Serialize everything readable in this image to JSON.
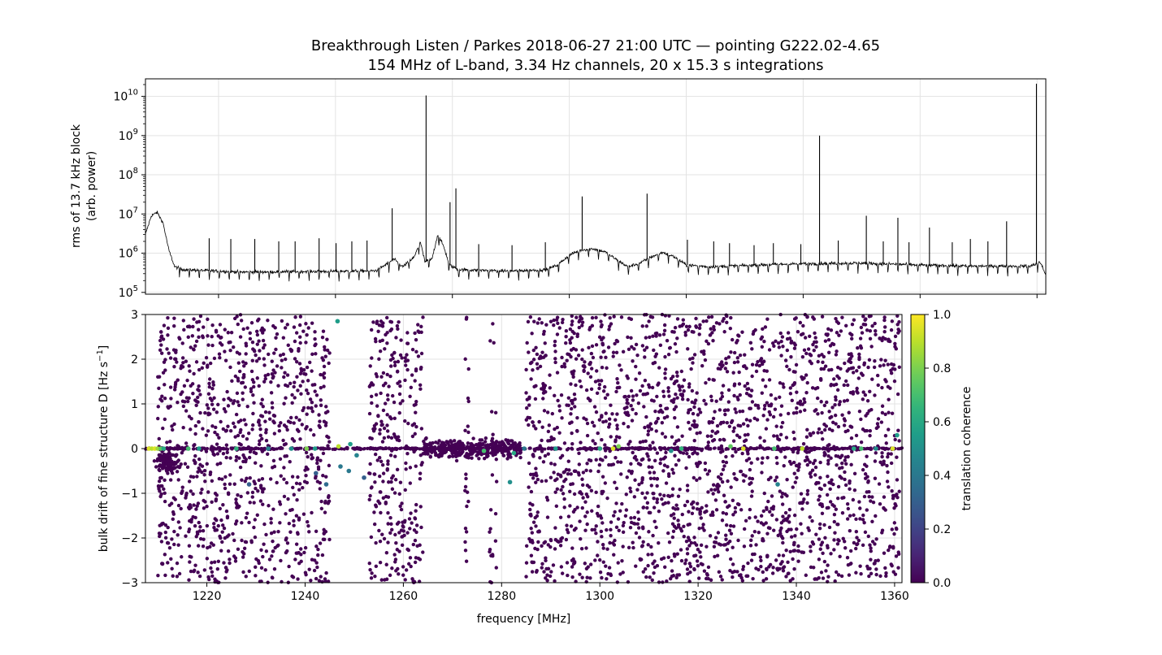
{
  "figure": {
    "title_line1": "Breakthrough Listen / Parkes 2018-06-27 21:00 UTC  —  pointing G222.02-4.65",
    "title_line2": "154 MHz of L-band, 3.34 Hz channels, 20 x 15.3 s integrations"
  },
  "chart_data": [
    {
      "type": "line",
      "panel": "top",
      "ylabel_line1": "rms of 13.7 kHz block",
      "ylabel_line2": "(arb. power)",
      "yscale": "log",
      "ylim": [
        90000,
        28000000000
      ],
      "xlim": [
        1207.5,
        1361.5
      ],
      "y_tick_labels": [
        {
          "base": "10",
          "exp": "5",
          "value": 100000
        },
        {
          "base": "10",
          "exp": "6",
          "value": 1000000
        },
        {
          "base": "10",
          "exp": "7",
          "value": 10000000
        },
        {
          "base": "10",
          "exp": "8",
          "value": 100000000
        },
        {
          "base": "10",
          "exp": "9",
          "value": 1000000000
        },
        {
          "base": "10",
          "exp": "10",
          "value": 10000000000
        }
      ],
      "grid": true,
      "line_color": "#000000",
      "baseline_profile": [
        [
          1207.5,
          3000000
        ],
        [
          1208.5,
          9000000
        ],
        [
          1209.5,
          11000000
        ],
        [
          1210.5,
          6000000
        ],
        [
          1211.5,
          1200000
        ],
        [
          1212.5,
          450000
        ],
        [
          1214,
          380000
        ],
        [
          1218,
          360000
        ],
        [
          1224,
          330000
        ],
        [
          1234,
          340000
        ],
        [
          1244,
          350000
        ],
        [
          1247,
          360000
        ],
        [
          1248.5,
          500000
        ],
        [
          1250,
          700000
        ],
        [
          1251.5,
          450000
        ],
        [
          1253.5,
          800000
        ],
        [
          1254.5,
          2000000
        ],
        [
          1255.3,
          600000
        ],
        [
          1256.5,
          700000
        ],
        [
          1257.5,
          3000000
        ],
        [
          1258.5,
          1500000
        ],
        [
          1259.5,
          500000
        ],
        [
          1261,
          380000
        ],
        [
          1270,
          350000
        ],
        [
          1276,
          380000
        ],
        [
          1278,
          500000
        ],
        [
          1280,
          900000
        ],
        [
          1282,
          1200000
        ],
        [
          1284,
          1300000
        ],
        [
          1286,
          1100000
        ],
        [
          1288,
          700000
        ],
        [
          1290,
          450000
        ],
        [
          1292,
          550000
        ],
        [
          1294,
          800000
        ],
        [
          1296,
          1050000
        ],
        [
          1298,
          800000
        ],
        [
          1300,
          500000
        ],
        [
          1304,
          450000
        ],
        [
          1312,
          500000
        ],
        [
          1320,
          540000
        ],
        [
          1330,
          560000
        ],
        [
          1340,
          500000
        ],
        [
          1348,
          470000
        ],
        [
          1352,
          470000
        ],
        [
          1356,
          470000
        ],
        [
          1359,
          470000
        ],
        [
          1360.5,
          600000
        ],
        [
          1361.5,
          280000
        ]
      ],
      "coarse_channel_dips": {
        "start": 1213.3,
        "spacing": 1.707,
        "factor": 0.55
      },
      "spikes": [
        {
          "x": 1255.5,
          "y": 10500000000
        },
        {
          "x": 1260.6,
          "y": 45000000
        },
        {
          "x": 1259.6,
          "y": 20000000
        },
        {
          "x": 1322.8,
          "y": 1000000000
        },
        {
          "x": 1359.9,
          "y": 21000000000
        },
        {
          "x": 1282.2,
          "y": 28000000
        },
        {
          "x": 1293.3,
          "y": 33000000
        },
        {
          "x": 1249.7,
          "y": 14000000
        },
        {
          "x": 1330.8,
          "y": 9000000
        },
        {
          "x": 1336.2,
          "y": 8000000
        },
        {
          "x": 1354.8,
          "y": 6500000
        },
        {
          "x": 1341.6,
          "y": 4500000
        },
        {
          "x": 1218.4,
          "y": 2400000
        },
        {
          "x": 1222.1,
          "y": 2300000
        },
        {
          "x": 1226.2,
          "y": 2300000
        },
        {
          "x": 1230.3,
          "y": 2000000
        },
        {
          "x": 1233.1,
          "y": 2000000
        },
        {
          "x": 1237.2,
          "y": 2400000
        },
        {
          "x": 1240.1,
          "y": 1800000
        },
        {
          "x": 1242.8,
          "y": 2000000
        },
        {
          "x": 1245.4,
          "y": 2100000
        },
        {
          "x": 1264.5,
          "y": 1700000
        },
        {
          "x": 1270.2,
          "y": 1600000
        },
        {
          "x": 1275.9,
          "y": 1900000
        },
        {
          "x": 1300.2,
          "y": 2200000
        },
        {
          "x": 1304.7,
          "y": 2000000
        },
        {
          "x": 1307.4,
          "y": 1800000
        },
        {
          "x": 1311.6,
          "y": 1600000
        },
        {
          "x": 1314.9,
          "y": 1800000
        },
        {
          "x": 1319.6,
          "y": 1700000
        },
        {
          "x": 1326.0,
          "y": 2100000
        },
        {
          "x": 1333.7,
          "y": 2000000
        },
        {
          "x": 1338.1,
          "y": 1900000
        },
        {
          "x": 1345.5,
          "y": 1900000
        },
        {
          "x": 1348.6,
          "y": 2300000
        },
        {
          "x": 1351.6,
          "y": 2000000
        }
      ]
    },
    {
      "type": "scatter",
      "panel": "bottom",
      "xlabel": "frequency [MHz]",
      "ylabel_text": "bulk drift of fine structure  D  [Hz s",
      "ylabel_sup": "−1",
      "ylabel_close": "]",
      "xlim": [
        1207.5,
        1361.5
      ],
      "ylim": [
        -3,
        3
      ],
      "x_ticks": [
        1220,
        1240,
        1260,
        1280,
        1300,
        1320,
        1340,
        1360
      ],
      "x_tick_labels": [
        "1220",
        "1240",
        "1260",
        "1280",
        "1300",
        "1320",
        "1340",
        "1360"
      ],
      "y_ticks": [
        -3,
        -2,
        -1,
        0,
        1,
        2,
        3
      ],
      "y_tick_labels": [
        "−3",
        "−2",
        "−1",
        "0",
        "1",
        "2",
        "3"
      ],
      "grid": true,
      "colorbar": {
        "label": "translation coherence",
        "colormap": "viridis",
        "range": [
          0.0,
          1.0
        ],
        "tick_values": [
          0.0,
          0.2,
          0.4,
          0.6,
          0.8,
          1.0
        ],
        "tick_labels": [
          "0.0",
          "0.2",
          "0.4",
          "0.6",
          "0.8",
          "1.0"
        ]
      },
      "scatter_description": {
        "background_point_color": "#440154",
        "dense_regions_mhz": [
          [
            1210,
            1245
          ],
          [
            1253,
            1264
          ],
          [
            1285,
            1361
          ]
        ],
        "sparse_regions_mhz": [
          [
            1277.5,
            1279
          ],
          [
            1272.5,
            1273.3
          ]
        ],
        "zero_drift_line_mhz": [
          1207.5,
          1361.5
        ],
        "central_cluster_mhz": [
          1264,
          1284
        ],
        "low_drift_blob": {
          "x": 1212,
          "y": -0.3
        }
      },
      "highlight_points": [
        {
          "x": 1208.2,
          "y": 0,
          "c": 0.95
        },
        {
          "x": 1208.8,
          "y": 0,
          "c": 0.9
        },
        {
          "x": 1209.4,
          "y": 0,
          "c": 0.95
        },
        {
          "x": 1210.0,
          "y": 0,
          "c": 0.85
        },
        {
          "x": 1210.6,
          "y": 0,
          "c": 0.75
        },
        {
          "x": 1211.2,
          "y": 0,
          "c": 0.6
        },
        {
          "x": 1216.2,
          "y": 0,
          "c": 0.7
        },
        {
          "x": 1218.4,
          "y": 0,
          "c": 0.55
        },
        {
          "x": 1226.0,
          "y": 0,
          "c": 0.65
        },
        {
          "x": 1232.5,
          "y": 0,
          "c": 0.45
        },
        {
          "x": 1237.2,
          "y": 0,
          "c": 0.5
        },
        {
          "x": 1240.3,
          "y": 0,
          "c": 0.8
        },
        {
          "x": 1242.0,
          "y": 0,
          "c": 0.55
        },
        {
          "x": 1246.8,
          "y": 0.05,
          "c": 0.9
        },
        {
          "x": 1249.2,
          "y": 0.1,
          "c": 0.55
        },
        {
          "x": 1250.5,
          "y": -0.15,
          "c": 0.45
        },
        {
          "x": 1246.6,
          "y": 2.85,
          "c": 0.55
        },
        {
          "x": 1248.9,
          "y": -0.5,
          "c": 0.4
        },
        {
          "x": 1252.0,
          "y": -0.65,
          "c": 0.3
        },
        {
          "x": 1276.4,
          "y": -0.05,
          "c": 0.7
        },
        {
          "x": 1281.7,
          "y": -0.75,
          "c": 0.5
        },
        {
          "x": 1282.5,
          "y": -0.1,
          "c": 0.6
        },
        {
          "x": 1284.6,
          "y": 0,
          "c": 0.4
        },
        {
          "x": 1291.0,
          "y": 0,
          "c": 0.55
        },
        {
          "x": 1300.0,
          "y": 0,
          "c": 0.6
        },
        {
          "x": 1302.7,
          "y": 0,
          "c": 0.95
        },
        {
          "x": 1303.8,
          "y": 0.05,
          "c": 0.8
        },
        {
          "x": 1314.5,
          "y": -0.05,
          "c": 0.5
        },
        {
          "x": 1316.6,
          "y": 0,
          "c": 0.65
        },
        {
          "x": 1326.6,
          "y": 0.05,
          "c": 0.75
        },
        {
          "x": 1329.2,
          "y": 0,
          "c": 0.95
        },
        {
          "x": 1335.5,
          "y": 0,
          "c": 0.7
        },
        {
          "x": 1336.2,
          "y": -0.8,
          "c": 0.45
        },
        {
          "x": 1341.2,
          "y": 0,
          "c": 0.9
        },
        {
          "x": 1351.7,
          "y": 0,
          "c": 0.6
        },
        {
          "x": 1353.2,
          "y": 0,
          "c": 0.7
        },
        {
          "x": 1356.2,
          "y": 0,
          "c": 0.5
        },
        {
          "x": 1359.6,
          "y": 0,
          "c": 0.95
        },
        {
          "x": 1360.5,
          "y": 0.3,
          "c": 0.55
        },
        {
          "x": 1228.6,
          "y": -0.8,
          "c": 0.3
        },
        {
          "x": 1244.3,
          "y": -0.8,
          "c": 0.35
        },
        {
          "x": 1242.2,
          "y": -0.55,
          "c": 0.3
        },
        {
          "x": 1247.2,
          "y": -0.4,
          "c": 0.4
        }
      ]
    }
  ]
}
